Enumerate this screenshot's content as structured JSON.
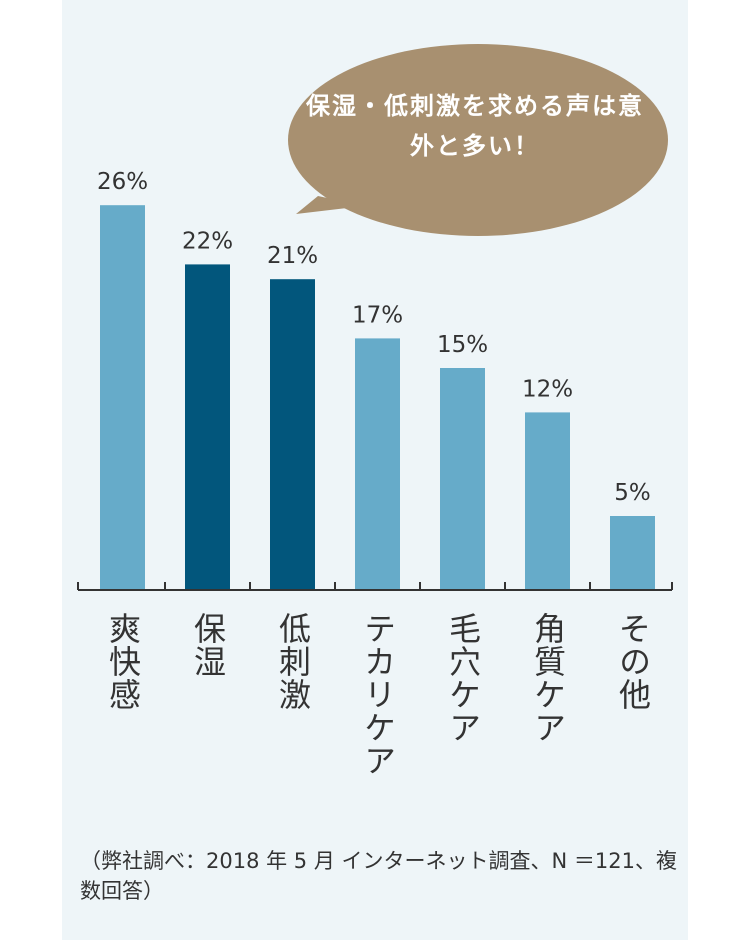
{
  "chart_data": {
    "type": "bar",
    "categories": [
      "爽快感",
      "保湿",
      "低刺激",
      "テカリケア",
      "毛穴ケア",
      "角質ケア",
      "その他"
    ],
    "values": [
      26,
      22,
      21,
      17,
      15,
      12,
      5
    ],
    "value_labels": [
      "26%",
      "22%",
      "21%",
      "17%",
      "15%",
      "12%",
      "5%"
    ],
    "highlighted": [
      false,
      true,
      true,
      false,
      false,
      false,
      false
    ],
    "unit": "%",
    "ylim": [
      0,
      30
    ],
    "grid": false,
    "title": "",
    "xlabel": "",
    "ylabel": ""
  },
  "callout": {
    "text": "保湿・低刺激を求める声は意外と多い！"
  },
  "footnote": "（弊社調べ：2018 年 5 月 インターネット調査、N ＝121、複数回答）",
  "colors": {
    "bar_default": "#66abc9",
    "bar_highlight": "#02567c",
    "callout": "#a89070",
    "panel_background": "#eef5f8",
    "axis": "#333333",
    "text": "#333333"
  }
}
